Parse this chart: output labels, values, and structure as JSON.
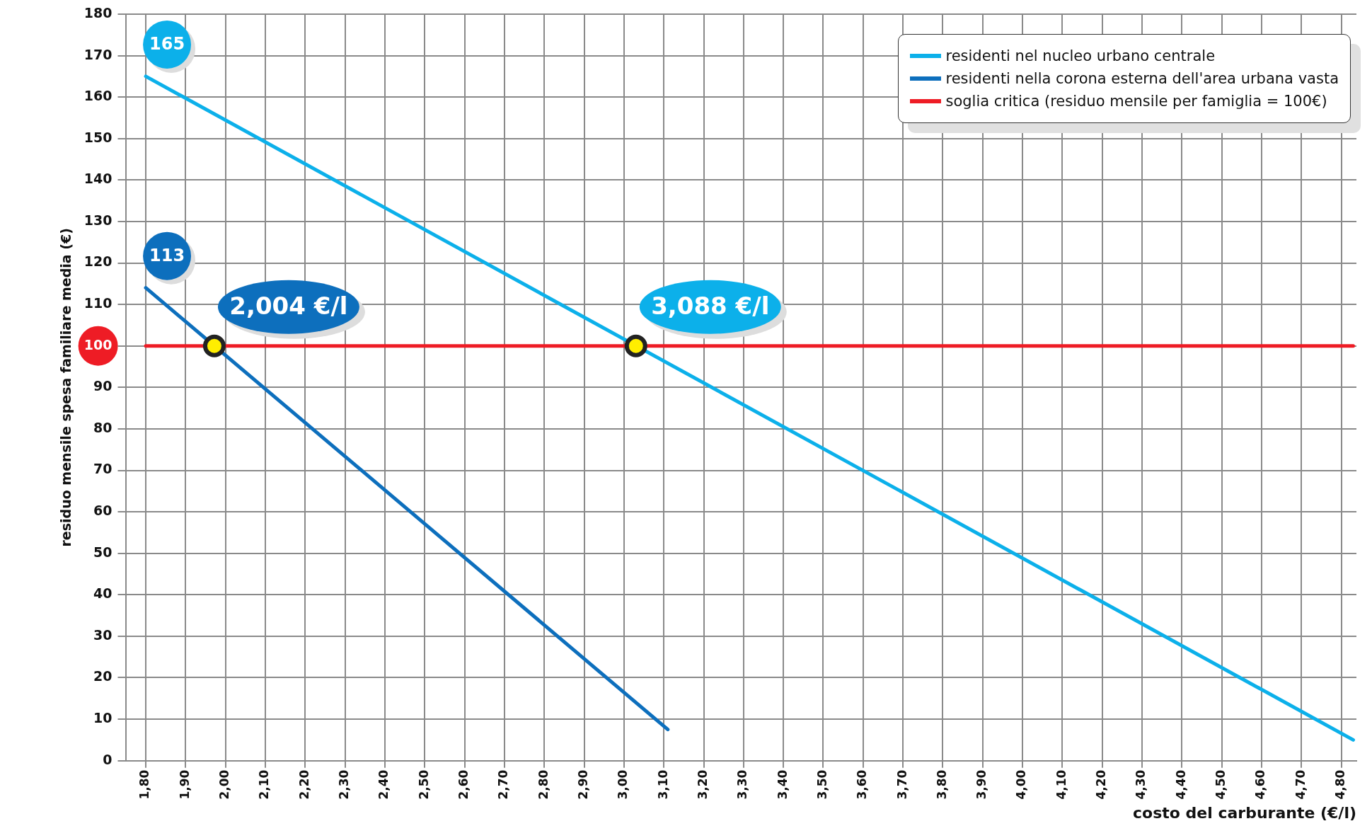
{
  "chart_data": {
    "type": "line",
    "xlabel": "costo del carburante (€/l)",
    "ylabel": "residuo mensile spesa familiare media (€)",
    "xlim": [
      1.751,
      4.838
    ],
    "ylim": [
      0,
      180
    ],
    "xticks": [
      {
        "value": 1.8,
        "label": "1,80"
      },
      {
        "value": 1.9,
        "label": "1,90"
      },
      {
        "value": 2.0,
        "label": "2,00"
      },
      {
        "value": 2.1,
        "label": "2,10"
      },
      {
        "value": 2.2,
        "label": "2,20"
      },
      {
        "value": 2.3,
        "label": "2,30"
      },
      {
        "value": 2.4,
        "label": "2,40"
      },
      {
        "value": 2.5,
        "label": "2,50"
      },
      {
        "value": 2.6,
        "label": "2,60"
      },
      {
        "value": 2.7,
        "label": "2,70"
      },
      {
        "value": 2.8,
        "label": "2,80"
      },
      {
        "value": 2.9,
        "label": "2,90"
      },
      {
        "value": 3.0,
        "label": "3,00"
      },
      {
        "value": 3.1,
        "label": "3,10"
      },
      {
        "value": 3.2,
        "label": "3,20"
      },
      {
        "value": 3.3,
        "label": "3,30"
      },
      {
        "value": 3.4,
        "label": "3,40"
      },
      {
        "value": 3.5,
        "label": "3,50"
      },
      {
        "value": 3.6,
        "label": "3,60"
      },
      {
        "value": 3.7,
        "label": "3,70"
      },
      {
        "value": 3.8,
        "label": "3,80"
      },
      {
        "value": 3.9,
        "label": "3,90"
      },
      {
        "value": 4.0,
        "label": "4,00"
      },
      {
        "value": 4.1,
        "label": "4,10"
      },
      {
        "value": 4.2,
        "label": "4,20"
      },
      {
        "value": 4.3,
        "label": "4,30"
      },
      {
        "value": 4.4,
        "label": "4,40"
      },
      {
        "value": 4.5,
        "label": "4,50"
      },
      {
        "value": 4.6,
        "label": "4,60"
      },
      {
        "value": 4.7,
        "label": "4,70"
      },
      {
        "value": 4.8,
        "label": "4,80"
      }
    ],
    "yticks": [
      0,
      10,
      20,
      30,
      40,
      50,
      60,
      70,
      80,
      90,
      100,
      110,
      120,
      130,
      140,
      150,
      160,
      170,
      180
    ],
    "grid": true,
    "legend": "top right",
    "marker": "none",
    "series": [
      {
        "name": "residenti nel nucleo urbano centrale",
        "color": "#0cb0ea",
        "x": [
          1.8,
          4.83
        ],
        "values": [
          165,
          5
        ]
      },
      {
        "name": "residenti nella corona esterna dell'area urbana vasta",
        "color": "#0d6fbd",
        "x": [
          1.8,
          3.11
        ],
        "values": [
          114,
          7.5
        ]
      },
      {
        "name": "soglia critica (residuo mensile per famiglia = 100€)",
        "color": "#ee1c25",
        "x": [
          1.8,
          4.83
        ],
        "values": [
          100,
          100
        ]
      }
    ],
    "annotations": [
      {
        "text": "165",
        "x": 1.8,
        "y": 165
      },
      {
        "text": "113",
        "x": 1.8,
        "y": 114
      },
      {
        "text": "2,004 €/l",
        "x": 1.972,
        "y": 100
      },
      {
        "text": "3,088 €/l",
        "x": 3.03,
        "y": 100
      }
    ]
  }
}
